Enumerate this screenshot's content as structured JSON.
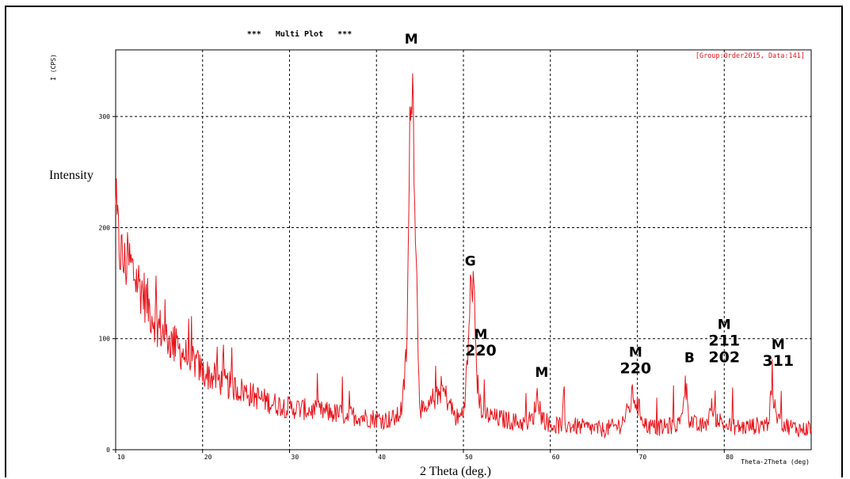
{
  "chart_data": {
    "type": "line",
    "title": "***   Multi Plot   ***",
    "header_note": "[Group:Order2015, Data:141]",
    "ylabel": "Intensity",
    "yunit": "I (CPS)",
    "xlabel": "2 Theta (deg.)",
    "xunit": "Theta-2Theta (deg)",
    "xlim": [
      10,
      90
    ],
    "ylim": [
      0,
      360
    ],
    "x_ticks": [
      10,
      20,
      30,
      40,
      50,
      60,
      70,
      80
    ],
    "x_tick_labels": [
      "10",
      "20",
      "30",
      "40",
      "50",
      "60",
      "70",
      "80"
    ],
    "y_ticks": [
      0,
      100,
      200,
      300
    ],
    "y_tick_labels": [
      "0",
      "100",
      "200",
      "300"
    ],
    "grid": true,
    "color": "#e8141b",
    "series": [
      {
        "x": [
          10,
          10.5,
          11,
          11.5,
          12,
          13,
          14,
          15,
          16,
          17,
          18,
          19,
          20,
          21,
          22,
          23,
          24,
          25,
          26,
          27,
          28,
          29,
          30,
          32,
          34,
          36,
          38,
          40,
          41,
          42,
          42.5,
          43,
          43.5,
          43.8,
          44,
          44.3,
          44.7,
          45,
          45.5,
          46,
          46.5,
          47,
          47.5,
          48,
          48.5,
          49,
          49.5,
          50,
          50.5,
          50.8,
          51,
          51.3,
          51.6,
          52,
          52.5,
          53,
          54,
          55,
          56,
          57,
          58,
          58.5,
          59,
          60,
          62,
          64,
          66,
          67,
          68,
          69,
          69.5,
          70,
          71,
          72,
          73,
          74,
          75,
          75.5,
          76,
          77,
          78,
          78.5,
          79,
          80,
          82,
          84,
          85,
          85.5,
          86,
          87,
          88,
          89,
          90
        ],
        "y": [
          210,
          180,
          165,
          170,
          160,
          145,
          125,
          110,
          100,
          92,
          85,
          80,
          70,
          66,
          62,
          58,
          55,
          52,
          48,
          45,
          42,
          40,
          38,
          36,
          34,
          32,
          30,
          28,
          27,
          28,
          30,
          40,
          95,
          250,
          360,
          290,
          120,
          40,
          32,
          36,
          45,
          50,
          55,
          48,
          40,
          30,
          28,
          35,
          80,
          140,
          160,
          120,
          60,
          38,
          32,
          30,
          28,
          27,
          25,
          24,
          28,
          50,
          30,
          22,
          22,
          20,
          18,
          20,
          22,
          35,
          50,
          40,
          22,
          20,
          20,
          22,
          24,
          62,
          28,
          20,
          24,
          38,
          30,
          22,
          20,
          22,
          24,
          50,
          30,
          22,
          20,
          18,
          20
        ]
      }
    ],
    "annotations": [
      {
        "x": 44,
        "y": 360,
        "lines": [
          "M"
        ]
      },
      {
        "x": 52,
        "y": 79,
        "lines": [
          "M",
          "220"
        ]
      },
      {
        "x": 50.8,
        "y": 160,
        "lines": [
          "G"
        ]
      },
      {
        "x": 59,
        "y": 60,
        "lines": [
          "M"
        ]
      },
      {
        "x": 69.8,
        "y": 63,
        "lines": [
          "M",
          "220"
        ]
      },
      {
        "x": 76,
        "y": 73,
        "lines": [
          "B"
        ]
      },
      {
        "x": 80,
        "y": 73,
        "lines": [
          "M",
          "211",
          "202"
        ]
      },
      {
        "x": 86.2,
        "y": 70,
        "lines": [
          "M",
          "311"
        ]
      }
    ]
  }
}
